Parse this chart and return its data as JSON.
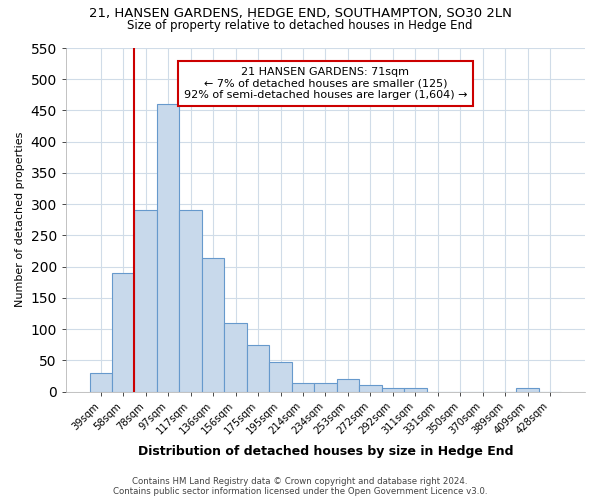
{
  "title_line1": "21, HANSEN GARDENS, HEDGE END, SOUTHAMPTON, SO30 2LN",
  "title_line2": "Size of property relative to detached houses in Hedge End",
  "xlabel": "Distribution of detached houses by size in Hedge End",
  "ylabel": "Number of detached properties",
  "categories": [
    "39sqm",
    "58sqm",
    "78sqm",
    "97sqm",
    "117sqm",
    "136sqm",
    "156sqm",
    "175sqm",
    "195sqm",
    "214sqm",
    "234sqm",
    "253sqm",
    "272sqm",
    "292sqm",
    "311sqm",
    "331sqm",
    "350sqm",
    "370sqm",
    "389sqm",
    "409sqm",
    "428sqm"
  ],
  "values": [
    30,
    190,
    290,
    460,
    290,
    213,
    110,
    75,
    47,
    13,
    13,
    20,
    10,
    5,
    5,
    0,
    0,
    0,
    0,
    5,
    0
  ],
  "bar_color": "#c8d9eb",
  "bar_edgecolor": "#6699cc",
  "property_line_x": 2.0,
  "annotation_title": "21 HANSEN GARDENS: 71sqm",
  "annotation_line2": "← 7% of detached houses are smaller (125)",
  "annotation_line3": "92% of semi-detached houses are larger (1,604) →",
  "vline_color": "#cc0000",
  "annotation_box_edgecolor": "#cc0000",
  "footer_line1": "Contains HM Land Registry data © Crown copyright and database right 2024.",
  "footer_line2": "Contains public sector information licensed under the Open Government Licence v3.0.",
  "ylim": [
    0,
    550
  ],
  "yticks": [
    0,
    50,
    100,
    150,
    200,
    250,
    300,
    350,
    400,
    450,
    500,
    550
  ],
  "background_color": "#ffffff",
  "grid_color": "#d0dce8",
  "title_fontsize": 9.5,
  "subtitle_fontsize": 8.5,
  "annotation_fontsize": 8.0,
  "figsize": [
    6.0,
    5.0
  ],
  "dpi": 100
}
